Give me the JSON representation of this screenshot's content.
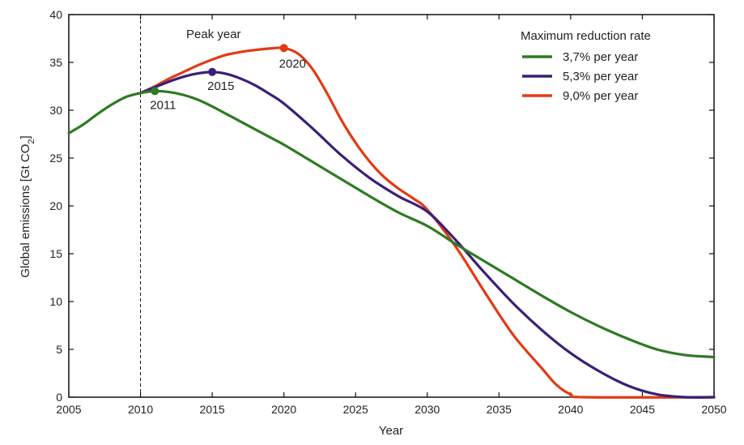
{
  "chart_data": {
    "type": "line",
    "xlabel": "Year",
    "ylabel": "Global emissions [Gt CO",
    "ylabel_sub": "2",
    "ylabel_end": "]",
    "xlim": [
      2005,
      2050
    ],
    "ylim": [
      0,
      40
    ],
    "xticks": [
      2005,
      2010,
      2015,
      2020,
      2025,
      2030,
      2035,
      2040,
      2045,
      2050
    ],
    "yticks": [
      0,
      5,
      10,
      15,
      20,
      25,
      30,
      35,
      40
    ],
    "grid": false,
    "reference_line": {
      "x": 2010,
      "style": "dashed"
    },
    "annotation": "Peak year",
    "legend": {
      "title": "Maximum reduction rate",
      "placement": "top-right"
    },
    "series": [
      {
        "name": "3,7% per year",
        "color": "#2e7a22",
        "peak": {
          "x": 2011,
          "y": 32.0,
          "label": "2011"
        },
        "points": [
          [
            2005,
            27.6
          ],
          [
            2006,
            28.5
          ],
          [
            2007,
            29.6
          ],
          [
            2008,
            30.6
          ],
          [
            2009,
            31.4
          ],
          [
            2010,
            31.8
          ],
          [
            2011,
            32.0
          ],
          [
            2012,
            31.9
          ],
          [
            2013,
            31.6
          ],
          [
            2014,
            31.1
          ],
          [
            2015,
            30.4
          ],
          [
            2016,
            29.6
          ],
          [
            2017,
            28.8
          ],
          [
            2018,
            28.0
          ],
          [
            2019,
            27.2
          ],
          [
            2020,
            26.4
          ],
          [
            2022,
            24.6
          ],
          [
            2024,
            22.8
          ],
          [
            2026,
            21.0
          ],
          [
            2028,
            19.3
          ],
          [
            2030,
            17.9
          ],
          [
            2032,
            16.0
          ],
          [
            2034,
            14.2
          ],
          [
            2036,
            12.4
          ],
          [
            2038,
            10.6
          ],
          [
            2040,
            8.9
          ],
          [
            2042,
            7.4
          ],
          [
            2044,
            6.1
          ],
          [
            2046,
            5.0
          ],
          [
            2048,
            4.4
          ],
          [
            2050,
            4.2
          ]
        ]
      },
      {
        "name": "5,3% per year",
        "color": "#3a1f78",
        "peak": {
          "x": 2015,
          "y": 34.0,
          "label": "2015"
        },
        "points": [
          [
            2010,
            31.8
          ],
          [
            2011,
            32.4
          ],
          [
            2012,
            33.0
          ],
          [
            2013,
            33.5
          ],
          [
            2014,
            33.85
          ],
          [
            2015,
            34.0
          ],
          [
            2016,
            33.8
          ],
          [
            2017,
            33.3
          ],
          [
            2018,
            32.6
          ],
          [
            2019,
            31.7
          ],
          [
            2020,
            30.7
          ],
          [
            2022,
            28.1
          ],
          [
            2024,
            25.3
          ],
          [
            2026,
            22.9
          ],
          [
            2028,
            21.0
          ],
          [
            2030,
            19.4
          ],
          [
            2032,
            16.4
          ],
          [
            2034,
            13.0
          ],
          [
            2036,
            9.8
          ],
          [
            2038,
            7.0
          ],
          [
            2040,
            4.6
          ],
          [
            2042,
            2.7
          ],
          [
            2044,
            1.2
          ],
          [
            2046,
            0.3
          ],
          [
            2048,
            0.0
          ],
          [
            2050,
            0.0
          ]
        ]
      },
      {
        "name": "9,0% per year",
        "color": "#e23a14",
        "peak": {
          "x": 2020,
          "y": 36.5,
          "label": "2020"
        },
        "points": [
          [
            2010,
            31.8
          ],
          [
            2011,
            32.5
          ],
          [
            2012,
            33.3
          ],
          [
            2013,
            34.0
          ],
          [
            2014,
            34.7
          ],
          [
            2015,
            35.3
          ],
          [
            2016,
            35.8
          ],
          [
            2017,
            36.1
          ],
          [
            2018,
            36.3
          ],
          [
            2019,
            36.45
          ],
          [
            2020,
            36.5
          ],
          [
            2021,
            35.9
          ],
          [
            2022,
            34.3
          ],
          [
            2023,
            31.8
          ],
          [
            2024,
            29.0
          ],
          [
            2025,
            26.6
          ],
          [
            2026,
            24.6
          ],
          [
            2027,
            23.0
          ],
          [
            2028,
            21.8
          ],
          [
            2029,
            20.8
          ],
          [
            2030,
            19.6
          ],
          [
            2032,
            15.7
          ],
          [
            2034,
            11.0
          ],
          [
            2036,
            6.5
          ],
          [
            2038,
            3.0
          ],
          [
            2039,
            1.3
          ],
          [
            2040,
            0.3
          ],
          [
            2041,
            0.0
          ],
          [
            2050,
            0.0
          ]
        ]
      }
    ]
  }
}
